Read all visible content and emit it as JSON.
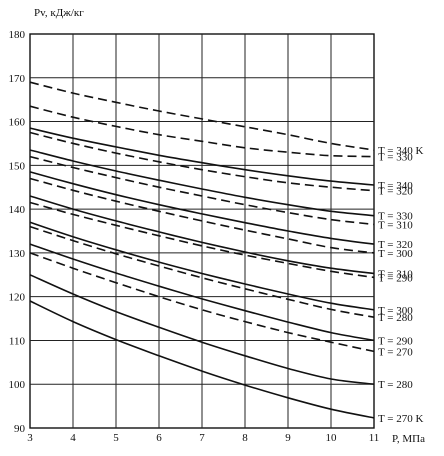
{
  "chart_data": {
    "type": "line",
    "ylabel": "Pv, кДж/кг",
    "xlabel": "P, МПа",
    "xlim": [
      3,
      11
    ],
    "ylim": [
      90,
      180
    ],
    "x_ticks": [
      "3",
      "4",
      "5",
      "6",
      "7",
      "8",
      "9",
      "10",
      "11"
    ],
    "y_ticks": [
      "90",
      "100",
      "110",
      "120",
      "130",
      "140",
      "150",
      "160",
      "170",
      "180"
    ],
    "grid": true,
    "x": [
      3,
      4,
      5,
      6,
      7,
      8,
      9,
      10,
      11
    ],
    "series": [
      {
        "name": "T = 340 K",
        "style": "dashed",
        "values": [
          169,
          166.5,
          164.4,
          162.4,
          160.6,
          158.8,
          157.0,
          155.0,
          153.5
        ]
      },
      {
        "name": "T = 330",
        "style": "dashed",
        "values": [
          163.5,
          161.0,
          158.9,
          157.0,
          155.5,
          154.0,
          153.0,
          152.2,
          152.0
        ]
      },
      {
        "name": "T = 340",
        "style": "solid",
        "values": [
          158.5,
          156.2,
          154.2,
          152.3,
          150.6,
          149.0,
          147.6,
          146.4,
          145.5
        ]
      },
      {
        "name": "T = 320",
        "style": "dashed",
        "values": [
          157.5,
          155.0,
          152.8,
          150.8,
          149.0,
          147.4,
          146.0,
          145.0,
          144.2
        ]
      },
      {
        "name": "T = 330",
        "style": "solid",
        "values": [
          153.5,
          151.0,
          148.7,
          146.6,
          144.6,
          142.7,
          141.0,
          139.5,
          138.5
        ]
      },
      {
        "name": "T = 310",
        "style": "dashed",
        "values": [
          152.0,
          149.5,
          147.2,
          145.0,
          143.0,
          141.0,
          139.2,
          137.6,
          136.5
        ]
      },
      {
        "name": "T = 320",
        "style": "solid",
        "values": [
          148.5,
          145.8,
          143.3,
          141.0,
          138.9,
          136.9,
          135.0,
          133.3,
          132.0
        ]
      },
      {
        "name": "T = 300",
        "style": "dashed",
        "values": [
          147.0,
          144.3,
          141.8,
          139.5,
          137.3,
          135.2,
          133.2,
          131.2,
          130.0
        ]
      },
      {
        "name": "T = 310",
        "style": "solid",
        "values": [
          143.0,
          140.0,
          137.3,
          134.8,
          132.4,
          130.2,
          128.2,
          126.5,
          125.3
        ]
      },
      {
        "name": "T = 290",
        "style": "dashed",
        "values": [
          141.5,
          138.8,
          136.3,
          133.9,
          131.6,
          129.5,
          127.6,
          125.8,
          124.4
        ]
      },
      {
        "name": "T = 300",
        "style": "solid",
        "values": [
          137.0,
          133.7,
          130.7,
          127.9,
          125.3,
          122.9,
          120.6,
          118.5,
          117.0
        ]
      },
      {
        "name": "T = 280",
        "style": "dashed",
        "values": [
          136.0,
          132.8,
          129.8,
          127.0,
          124.3,
          121.8,
          119.4,
          117.1,
          115.3
        ]
      },
      {
        "name": "T = 290",
        "style": "solid",
        "values": [
          132.0,
          128.6,
          125.4,
          122.4,
          119.5,
          116.8,
          114.2,
          111.8,
          110.0
        ]
      },
      {
        "name": "T = 270",
        "style": "dashed",
        "values": [
          130.0,
          126.5,
          123.2,
          120.0,
          117.0,
          114.3,
          111.8,
          109.6,
          107.5
        ]
      },
      {
        "name": "T = 280",
        "style": "solid",
        "values": [
          125.0,
          120.6,
          116.6,
          113.0,
          109.6,
          106.5,
          103.6,
          101.2,
          100.0
        ]
      },
      {
        "name": "T = 270 K",
        "style": "solid",
        "values": [
          119.0,
          114.3,
          110.2,
          106.5,
          103.0,
          99.8,
          96.9,
          94.3,
          92.3
        ]
      }
    ]
  }
}
